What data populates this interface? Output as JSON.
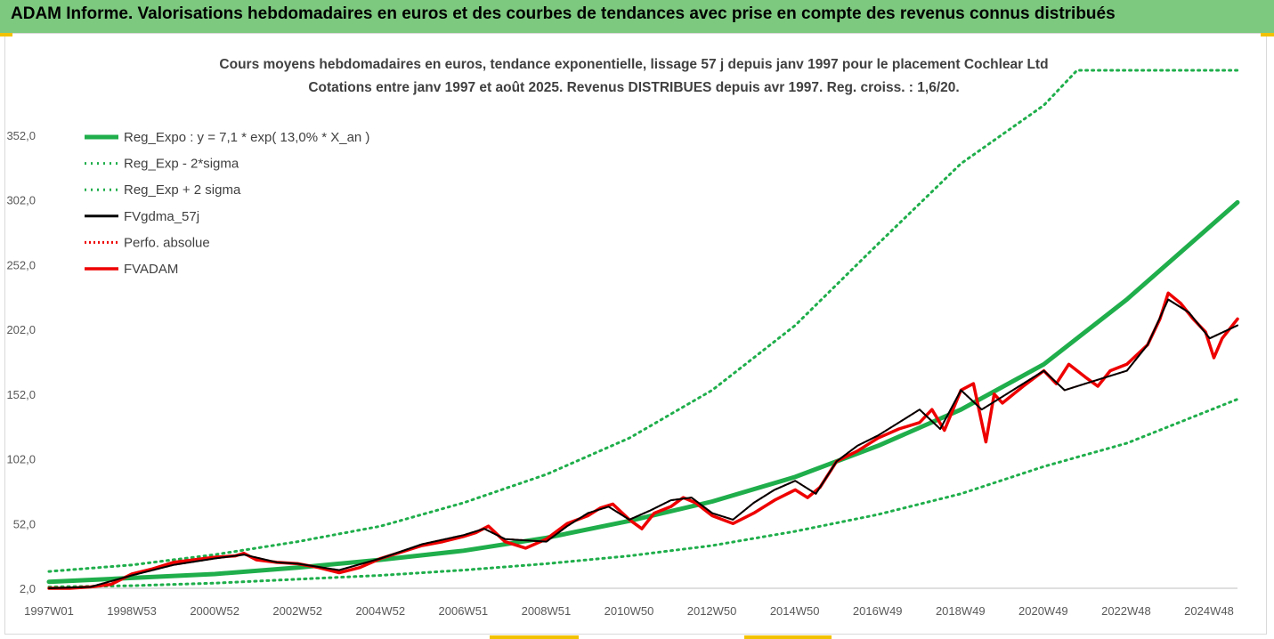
{
  "banner": {
    "title": "ADAM Informe. Valorisations hebdomadaires en euros et des courbes de tendances avec prise en compte des revenus connus distribués"
  },
  "colors": {
    "banner_bg": "#7cc97f",
    "trend_green": "#1fae4b",
    "fv_black": "#000000",
    "fv_red": "#ee0000",
    "corner_marker": "#f2c200"
  },
  "chart_data": {
    "type": "line",
    "title": "Cours moyens hebdomadaires en euros, tendance exponentielle, lissage 57 j depuis janv 1997 pour le placement Cochlear Ltd",
    "subtitle": "Cotations entre janv 1997 et août 2025. Revenus DISTRIBUES depuis avr 1997. Reg. croiss. : 1,6/20.",
    "xlabel": "",
    "ylabel": "",
    "x_ticks": [
      "1997W01",
      "1998W53",
      "2000W52",
      "2002W52",
      "2004W52",
      "2006W51",
      "2008W51",
      "2010W50",
      "2012W50",
      "2014W50",
      "2016W49",
      "2018W49",
      "2020W49",
      "2022W48",
      "2024W48"
    ],
    "y_ticks": [
      "2,0",
      "52,0",
      "102,0",
      "152,0",
      "202,0",
      "252,0",
      "302,0",
      "352,0"
    ],
    "ylim": [
      2,
      402
    ],
    "xlim": [
      1997.0,
      2025.67
    ],
    "grid": false,
    "legend_position": "top-left",
    "legend": [
      {
        "label": "Reg_Expo : y = 7,1 * exp( 13,0% *  X_an )",
        "style": "solid-green"
      },
      {
        "label": "Reg_Exp - 2*sigma",
        "style": "dotted-green"
      },
      {
        "label": "Reg_Exp + 2 sigma",
        "style": "dotted-green"
      },
      {
        "label": "FVgdma_57j",
        "style": "solid-black"
      },
      {
        "label": "Perfo. absolue",
        "style": "dotted-red"
      },
      {
        "label": "FVADAM",
        "style": "solid-red"
      }
    ],
    "series": [
      {
        "name": "Reg_Expo : y = 7,1 * exp( 13,0% *  X_an )",
        "style": "solid-green",
        "x": [
          1997.0,
          1999.0,
          2001.0,
          2003.0,
          2005.0,
          2007.0,
          2009.0,
          2011.0,
          2013.0,
          2015.0,
          2017.0,
          2019.0,
          2021.0,
          2023.0,
          2025.67
        ],
        "y": [
          7,
          10,
          13,
          18,
          24,
          31,
          41,
          54,
          69,
          88,
          112,
          140,
          175,
          225,
          300
        ]
      },
      {
        "name": "Reg_Exp - 2*sigma",
        "style": "dotted-green",
        "x": [
          1997.0,
          1999.0,
          2001.0,
          2003.0,
          2005.0,
          2007.0,
          2009.0,
          2011.0,
          2013.0,
          2015.0,
          2017.0,
          2019.0,
          2021.0,
          2023.0,
          2025.67
        ],
        "y": [
          3,
          4,
          6,
          9,
          12,
          16,
          21,
          27,
          35,
          46,
          59,
          75,
          96,
          114,
          148
        ]
      },
      {
        "name": "Reg_Exp + 2 sigma",
        "style": "dotted-green",
        "x": [
          1997.0,
          1999.0,
          2001.0,
          2003.0,
          2005.0,
          2007.0,
          2009.0,
          2011.0,
          2013.0,
          2015.0,
          2017.0,
          2019.0,
          2021.0,
          2021.8,
          2025.67
        ],
        "y": [
          15,
          20,
          28,
          38,
          50,
          68,
          90,
          118,
          155,
          205,
          268,
          330,
          375,
          402,
          402
        ]
      },
      {
        "name": "FVgdma_57j",
        "style": "solid-black",
        "x": [
          1997.0,
          1998.0,
          1999.0,
          2000.0,
          2001.0,
          2001.7,
          2002.5,
          2003.0,
          2004.0,
          2005.0,
          2006.0,
          2007.0,
          2007.5,
          2008.0,
          2009.0,
          2009.5,
          2010.0,
          2010.5,
          2011.0,
          2011.5,
          2012.0,
          2012.5,
          2013.0,
          2013.5,
          2014.0,
          2014.5,
          2015.0,
          2015.5,
          2016.0,
          2016.5,
          2017.0,
          2017.5,
          2018.0,
          2018.5,
          2019.0,
          2019.5,
          2020.0,
          2020.5,
          2021.0,
          2021.5,
          2022.0,
          2022.5,
          2023.0,
          2023.5,
          2024.0,
          2024.5,
          2025.0,
          2025.67
        ],
        "y": [
          2,
          3,
          12,
          20,
          25,
          28,
          22,
          21,
          16,
          25,
          36,
          43,
          48,
          40,
          38,
          50,
          60,
          65,
          55,
          62,
          70,
          72,
          60,
          55,
          68,
          78,
          85,
          75,
          100,
          112,
          120,
          130,
          140,
          125,
          155,
          140,
          150,
          160,
          170,
          155,
          160,
          165,
          170,
          190,
          225,
          215,
          195,
          205
        ]
      },
      {
        "name": "Perfo. absolue",
        "style": "dotted-red",
        "x": [
          1997.0,
          1998.0,
          1999.0,
          2000.0,
          2001.0,
          2001.7,
          2002.5,
          2003.0,
          2004.0,
          2005.0,
          2006.0,
          2007.0,
          2007.5,
          2008.0,
          2009.0,
          2009.5,
          2010.0,
          2010.5,
          2011.0,
          2011.5,
          2012.0,
          2012.5,
          2013.0,
          2013.5,
          2014.0,
          2014.5,
          2015.0,
          2015.5,
          2016.0,
          2016.5,
          2017.0,
          2017.5,
          2018.0,
          2018.5,
          2019.0,
          2019.5,
          2020.0,
          2020.5,
          2021.0,
          2021.5,
          2022.0,
          2022.5,
          2023.0,
          2023.5,
          2024.0,
          2024.5,
          2025.0,
          2025.67
        ],
        "y": [
          2,
          3,
          12,
          20,
          25,
          28,
          22,
          21,
          16,
          25,
          36,
          43,
          48,
          40,
          38,
          50,
          60,
          65,
          55,
          62,
          70,
          72,
          60,
          55,
          68,
          78,
          85,
          75,
          100,
          112,
          120,
          130,
          140,
          125,
          155,
          140,
          150,
          160,
          170,
          155,
          160,
          165,
          170,
          190,
          225,
          215,
          195,
          205
        ]
      },
      {
        "name": "FVADAM",
        "style": "solid-red",
        "x": [
          1997.0,
          1997.5,
          1998.0,
          1998.5,
          1999.0,
          1999.5,
          2000.0,
          2000.5,
          2001.0,
          2001.5,
          2001.7,
          2002.0,
          2002.5,
          2003.0,
          2003.5,
          2004.0,
          2004.5,
          2005.0,
          2005.5,
          2006.0,
          2006.5,
          2007.0,
          2007.3,
          2007.6,
          2008.0,
          2008.5,
          2009.0,
          2009.5,
          2010.0,
          2010.3,
          2010.6,
          2011.0,
          2011.3,
          2011.6,
          2012.0,
          2012.3,
          2012.6,
          2013.0,
          2013.5,
          2014.0,
          2014.5,
          2015.0,
          2015.3,
          2015.6,
          2016.0,
          2016.5,
          2017.0,
          2017.5,
          2018.0,
          2018.3,
          2018.6,
          2019.0,
          2019.3,
          2019.6,
          2019.8,
          2020.0,
          2020.5,
          2021.0,
          2021.3,
          2021.6,
          2022.0,
          2022.3,
          2022.6,
          2023.0,
          2023.5,
          2023.8,
          2024.0,
          2024.3,
          2024.6,
          2024.9,
          2025.1,
          2025.3,
          2025.67
        ],
        "y": [
          2,
          2,
          3,
          5,
          13,
          17,
          22,
          24,
          26,
          27,
          29,
          24,
          22,
          21,
          18,
          14,
          18,
          25,
          30,
          35,
          38,
          42,
          45,
          50,
          38,
          33,
          40,
          52,
          58,
          64,
          67,
          55,
          48,
          60,
          65,
          72,
          68,
          58,
          52,
          60,
          70,
          78,
          72,
          80,
          100,
          108,
          118,
          125,
          130,
          140,
          124,
          155,
          160,
          115,
          152,
          145,
          158,
          170,
          160,
          175,
          165,
          158,
          170,
          175,
          190,
          210,
          230,
          222,
          210,
          200,
          180,
          195,
          210
        ]
      }
    ]
  }
}
